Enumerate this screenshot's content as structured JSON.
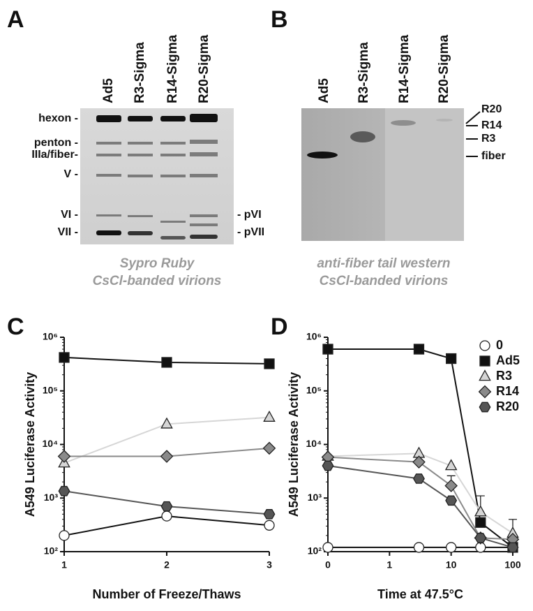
{
  "panels": {
    "A": {
      "letter": "A",
      "lanes": [
        "Ad5",
        "R3-Sigma",
        "R14-Sigma",
        "R20-Sigma"
      ],
      "left_labels": [
        "hexon -",
        "penton -",
        "IIIa/fiber-",
        "V -",
        "VI -",
        "VII -"
      ],
      "right_labels": [
        "- pVI",
        "- pVII"
      ],
      "caption": [
        "Sypro Ruby",
        "CsCl-banded virions"
      ]
    },
    "B": {
      "letter": "B",
      "lanes": [
        "Ad5",
        "R3-Sigma",
        "R14-Sigma",
        "R20-Sigma"
      ],
      "right_labels": [
        "R20",
        "R14",
        "R3",
        "fiber"
      ],
      "caption": [
        "anti-fiber tail western",
        "CsCl-banded virions"
      ]
    }
  },
  "chart_data": [
    {
      "type": "line",
      "label": "C",
      "xlabel": "Number of Freeze/Thaws",
      "ylabel": "A549 Luciferase Activity",
      "x": [
        1,
        2,
        3
      ],
      "xlim": [
        1,
        3
      ],
      "xticks": [
        1,
        2,
        3
      ],
      "xscale": "linear",
      "yscale": "log",
      "ylim": [
        100,
        1000000
      ],
      "yticks": [
        {
          "value": 100,
          "label": "10²"
        },
        {
          "value": 1000,
          "label": "10³"
        },
        {
          "value": 10000,
          "label": "10⁴"
        },
        {
          "value": 100000,
          "label": "10⁵"
        },
        {
          "value": 1000000,
          "label": "10⁶"
        }
      ],
      "series": [
        {
          "name": "0",
          "color": "#111111",
          "fill": "#ffffff",
          "marker": "circle",
          "values": [
            200,
            460,
            310
          ]
        },
        {
          "name": "Ad5",
          "color": "#111111",
          "fill": "#111111",
          "marker": "square",
          "values": [
            420000,
            340000,
            320000
          ]
        },
        {
          "name": "R3",
          "color": "#d6d6d6",
          "fill": "#d6d6d6",
          "marker": "triangle",
          "values": [
            4500,
            24000,
            32000
          ]
        },
        {
          "name": "R14",
          "color": "#8a8a8a",
          "fill": "#8a8a8a",
          "marker": "diamond",
          "values": [
            6000,
            6000,
            8500
          ]
        },
        {
          "name": "R20",
          "color": "#555555",
          "fill": "#555555",
          "marker": "hexagon",
          "values": [
            1350,
            700,
            500
          ]
        }
      ]
    },
    {
      "type": "line",
      "label": "D",
      "xlabel": "Time at 47.5°C",
      "ylabel": "A549 Luciferase Activity",
      "x": [
        0,
        3,
        10,
        30,
        100
      ],
      "xlim": [
        0,
        100
      ],
      "xticks": [
        0,
        1,
        10,
        100
      ],
      "xscale": "symlog",
      "linthresh": 1,
      "yscale": "log",
      "ylim": [
        100,
        1000000
      ],
      "yticks": [
        {
          "value": 100,
          "label": "10²"
        },
        {
          "value": 1000,
          "label": "10³"
        },
        {
          "value": 10000,
          "label": "10⁴"
        },
        {
          "value": 100000,
          "label": "10⁵"
        },
        {
          "value": 1000000,
          "label": "10⁶"
        }
      ],
      "legend": "upper right",
      "series": [
        {
          "name": "0",
          "color": "#111111",
          "fill": "#ffffff",
          "marker": "circle",
          "values": [
            120,
            120,
            120,
            120,
            120
          ]
        },
        {
          "name": "Ad5",
          "color": "#111111",
          "fill": "#111111",
          "marker": "square",
          "values": [
            600000,
            600000,
            400000,
            350,
            120
          ]
        },
        {
          "name": "R3",
          "color": "#d6d6d6",
          "fill": "#d6d6d6",
          "marker": "triangle",
          "values": [
            6000,
            6800,
            4000,
            550,
            220
          ],
          "errors": [
            null,
            null,
            null,
            550,
            180
          ]
        },
        {
          "name": "R14",
          "color": "#8a8a8a",
          "fill": "#8a8a8a",
          "marker": "diamond",
          "values": [
            5800,
            4700,
            1700,
            180,
            170
          ],
          "errors": [
            null,
            null,
            900,
            null,
            null
          ]
        },
        {
          "name": "R20",
          "color": "#555555",
          "fill": "#555555",
          "marker": "hexagon",
          "values": [
            4000,
            2300,
            900,
            180,
            120
          ]
        }
      ]
    }
  ]
}
